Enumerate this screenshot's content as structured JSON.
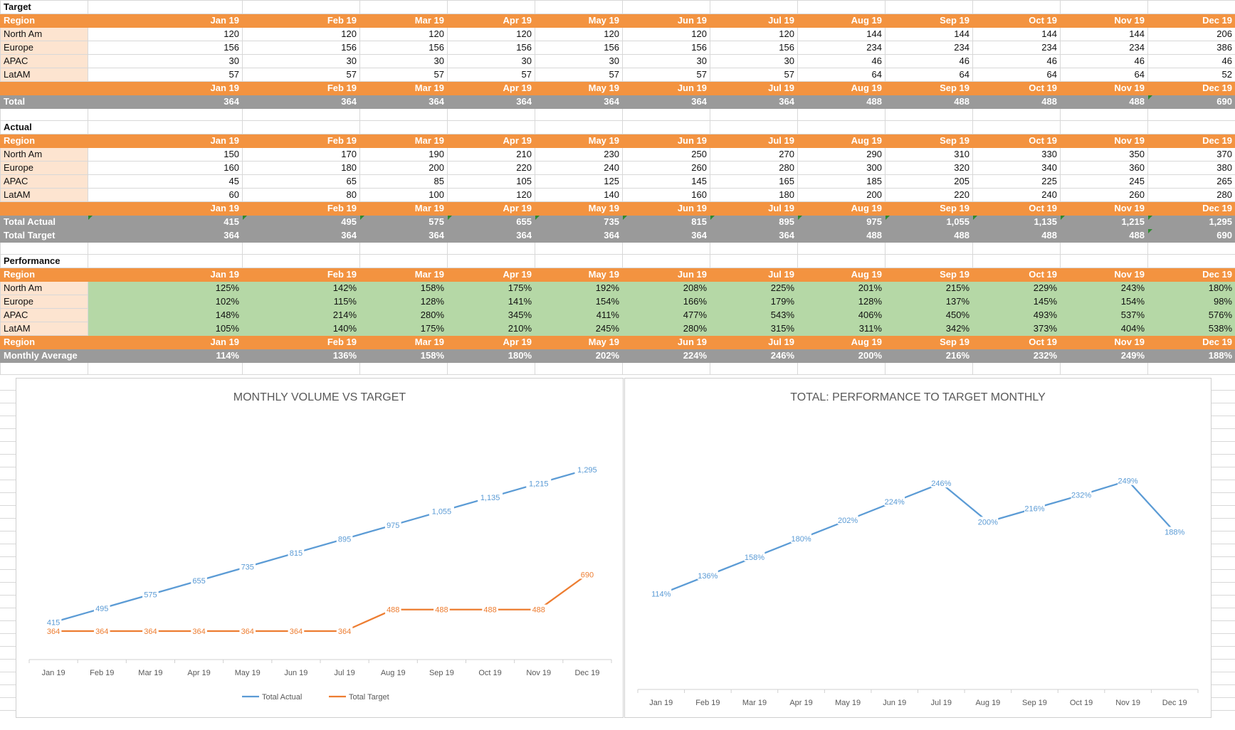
{
  "months": [
    "Jan 19",
    "Feb 19",
    "Mar 19",
    "Apr 19",
    "May 19",
    "Jun 19",
    "Jul 19",
    "Aug 19",
    "Sep 19",
    "Oct 19",
    "Nov 19",
    "Dec 19"
  ],
  "target": {
    "title": "Target",
    "header_label": "Region",
    "rows": [
      {
        "label": "North Am",
        "values": [
          "120",
          "120",
          "120",
          "120",
          "120",
          "120",
          "120",
          "144",
          "144",
          "144",
          "144",
          "206"
        ]
      },
      {
        "label": "Europe",
        "values": [
          "156",
          "156",
          "156",
          "156",
          "156",
          "156",
          "156",
          "234",
          "234",
          "234",
          "234",
          "386"
        ]
      },
      {
        "label": "APAC",
        "values": [
          "30",
          "30",
          "30",
          "30",
          "30",
          "30",
          "30",
          "46",
          "46",
          "46",
          "46",
          "46"
        ]
      },
      {
        "label": "LatAM",
        "values": [
          "57",
          "57",
          "57",
          "57",
          "57",
          "57",
          "57",
          "64",
          "64",
          "64",
          "64",
          "52"
        ]
      }
    ],
    "total_label": "Total",
    "total_values": [
      "364",
      "364",
      "364",
      "364",
      "364",
      "364",
      "364",
      "488",
      "488",
      "488",
      "488",
      "690"
    ]
  },
  "actual": {
    "title": "Actual",
    "header_label": "Region",
    "rows": [
      {
        "label": "North Am",
        "values": [
          "150",
          "170",
          "190",
          "210",
          "230",
          "250",
          "270",
          "290",
          "310",
          "330",
          "350",
          "370"
        ]
      },
      {
        "label": "Europe",
        "values": [
          "160",
          "180",
          "200",
          "220",
          "240",
          "260",
          "280",
          "300",
          "320",
          "340",
          "360",
          "380"
        ]
      },
      {
        "label": "APAC",
        "values": [
          "45",
          "65",
          "85",
          "105",
          "125",
          "145",
          "165",
          "185",
          "205",
          "225",
          "245",
          "265"
        ]
      },
      {
        "label": "LatAM",
        "values": [
          "60",
          "80",
          "100",
          "120",
          "140",
          "160",
          "180",
          "200",
          "220",
          "240",
          "260",
          "280"
        ]
      }
    ],
    "total_actual_label": "Total Actual",
    "total_actual_values": [
      "415",
      "495",
      "575",
      "655",
      "735",
      "815",
      "895",
      "975",
      "1,055",
      "1,135",
      "1,215",
      "1,295"
    ],
    "total_target_label": "Total Target",
    "total_target_values": [
      "364",
      "364",
      "364",
      "364",
      "364",
      "364",
      "364",
      "488",
      "488",
      "488",
      "488",
      "690"
    ]
  },
  "performance": {
    "title": "Performance",
    "header_label": "Region",
    "rows": [
      {
        "label": "North Am",
        "values": [
          "125%",
          "142%",
          "158%",
          "175%",
          "192%",
          "208%",
          "225%",
          "201%",
          "215%",
          "229%",
          "243%",
          "180%"
        ]
      },
      {
        "label": "Europe",
        "values": [
          "102%",
          "115%",
          "128%",
          "141%",
          "154%",
          "166%",
          "179%",
          "128%",
          "137%",
          "145%",
          "154%",
          "98%"
        ]
      },
      {
        "label": "APAC",
        "values": [
          "148%",
          "214%",
          "280%",
          "345%",
          "411%",
          "477%",
          "543%",
          "406%",
          "450%",
          "493%",
          "537%",
          "576%"
        ]
      },
      {
        "label": "LatAM",
        "values": [
          "105%",
          "140%",
          "175%",
          "210%",
          "245%",
          "280%",
          "315%",
          "311%",
          "342%",
          "373%",
          "404%",
          "538%"
        ]
      }
    ],
    "footer_header_label": "Region",
    "avg_label": "Monthly Average",
    "avg_values": [
      "114%",
      "136%",
      "158%",
      "180%",
      "202%",
      "224%",
      "246%",
      "200%",
      "216%",
      "232%",
      "249%",
      "188%"
    ]
  },
  "colors": {
    "orange": "#f39340",
    "gray": "#9a9a9a",
    "peach": "#fde4d0",
    "green": "#b5d8a6",
    "series_blue": "#5b9bd5",
    "series_orange": "#ed7d31"
  },
  "chart_data": [
    {
      "type": "line",
      "title": "MONTHLY VOLUME VS TARGET",
      "categories": [
        "Jan 19",
        "Feb 19",
        "Mar 19",
        "Apr 19",
        "May 19",
        "Jun 19",
        "Jul 19",
        "Aug 19",
        "Sep 19",
        "Oct 19",
        "Nov 19",
        "Dec 19"
      ],
      "series": [
        {
          "name": "Total Actual",
          "color": "#5b9bd5",
          "values": [
            415,
            495,
            575,
            655,
            735,
            815,
            895,
            975,
            1055,
            1135,
            1215,
            1295
          ],
          "labels": [
            "415",
            "495",
            "575",
            "655",
            "735",
            "815",
            "895",
            "975",
            "1,055",
            "1,135",
            "1,215",
            "1,295"
          ]
        },
        {
          "name": "Total Target",
          "color": "#ed7d31",
          "values": [
            364,
            364,
            364,
            364,
            364,
            364,
            364,
            488,
            488,
            488,
            488,
            690
          ],
          "labels": [
            "364",
            "364",
            "364",
            "364",
            "364",
            "364",
            "364",
            "488",
            "488",
            "488",
            "488",
            "690"
          ]
        }
      ],
      "ylim": [
        200,
        1450
      ],
      "legend": "bottom"
    },
    {
      "type": "line",
      "title": "TOTAL: PERFORMANCE  TO TARGET MONTHLY",
      "categories": [
        "Jan 19",
        "Feb 19",
        "Mar 19",
        "Apr 19",
        "May 19",
        "Jun 19",
        "Jul 19",
        "Aug 19",
        "Sep 19",
        "Oct 19",
        "Nov 19",
        "Dec 19"
      ],
      "series": [
        {
          "name": "Monthly Average",
          "color": "#5b9bd5",
          "values": [
            114,
            136,
            158,
            180,
            202,
            224,
            246,
            200,
            216,
            232,
            249,
            188
          ],
          "labels": [
            "114%",
            "136%",
            "158%",
            "180%",
            "202%",
            "224%",
            "246%",
            "200%",
            "216%",
            "232%",
            "249%",
            "188%"
          ]
        }
      ],
      "ylim": [
        0,
        320
      ],
      "legend": "none"
    }
  ]
}
